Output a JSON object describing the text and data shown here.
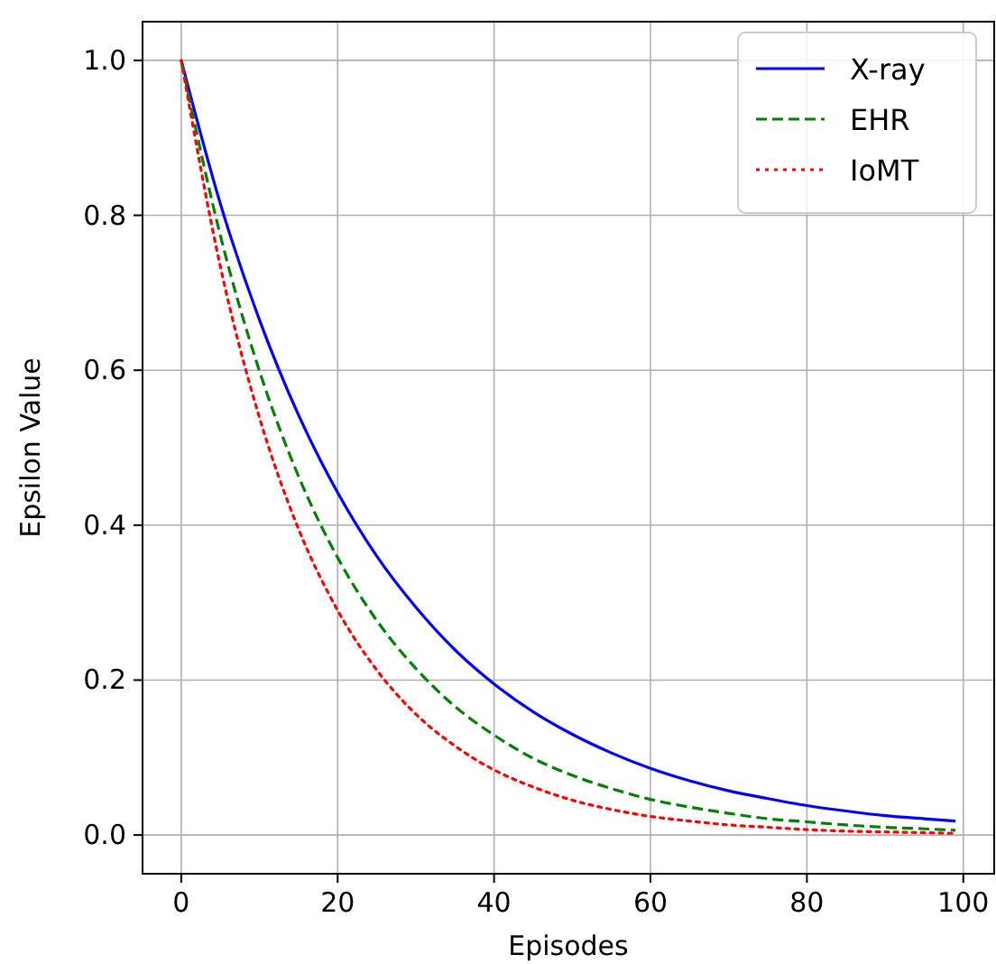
{
  "chart_data": {
    "type": "line",
    "xlabel": "Episodes",
    "ylabel": "Epsilon Value",
    "x": [
      0,
      5,
      10,
      15,
      20,
      25,
      30,
      35,
      40,
      45,
      50,
      55,
      60,
      65,
      70,
      75,
      80,
      85,
      90,
      95,
      99
    ],
    "xlim": [
      -4.95,
      103.95
    ],
    "xticks": [
      0,
      20,
      40,
      60,
      80,
      100
    ],
    "ylim": [
      -0.05,
      1.05
    ],
    "yticks": [
      {
        "value": 0,
        "label": "0.0"
      },
      {
        "value": 0.2,
        "label": "0.2"
      },
      {
        "value": 0.4,
        "label": "0.4"
      },
      {
        "value": 0.6,
        "label": "0.6"
      },
      {
        "value": 0.8,
        "label": "0.8"
      },
      {
        "value": 1,
        "label": "1.0"
      }
    ],
    "grid": true,
    "legend": "top right",
    "series": [
      {
        "name": "X-ray",
        "color": "#0000ff",
        "line_style": "solid",
        "values": [
          1,
          0.815,
          0.665,
          0.542,
          0.442,
          0.36,
          0.294,
          0.239,
          0.195,
          0.159,
          0.13,
          0.106,
          0.086,
          0.07,
          0.057,
          0.047,
          0.038,
          0.031,
          0.025,
          0.021,
          0.018
        ]
      },
      {
        "name": "EHR",
        "color": "#008000",
        "line_style": "dashed",
        "values": [
          1,
          0.774,
          0.599,
          0.463,
          0.358,
          0.277,
          0.215,
          0.166,
          0.129,
          0.099,
          0.077,
          0.06,
          0.046,
          0.036,
          0.028,
          0.021,
          0.017,
          0.013,
          0.01,
          0.008,
          0.006
        ]
      },
      {
        "name": "IoMT",
        "color": "#ff0000",
        "line_style": "dotted",
        "values": [
          1,
          0.734,
          0.539,
          0.395,
          0.29,
          0.213,
          0.156,
          0.115,
          0.084,
          0.062,
          0.045,
          0.033,
          0.024,
          0.018,
          0.013,
          0.01,
          0.007,
          0.005,
          0.004,
          0.003,
          0.002
        ]
      }
    ]
  }
}
